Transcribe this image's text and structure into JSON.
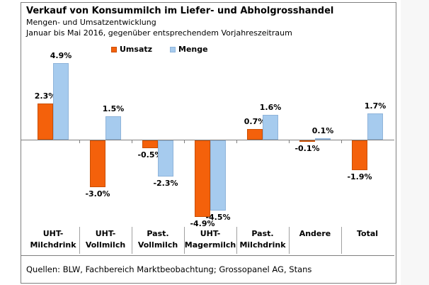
{
  "header": {
    "title": "Verkauf von Konsummilch im Liefer- und Abholgrosshandel",
    "subtitle1": "Mengen- und Umsatzentwicklung",
    "subtitle2": "Januar bis Mai 2016, gegenüber entsprechendem Vorjahreszeitraum"
  },
  "legend": {
    "items": [
      {
        "label": "Umsatz",
        "color": "#F4610B",
        "border": "#C94F04"
      },
      {
        "label": "Menge",
        "color": "#A6CBEE",
        "border": "#8FB4DA"
      }
    ]
  },
  "chart_data": {
    "type": "bar",
    "title": "Verkauf von Konsummilch im Liefer- und Abholgrosshandel",
    "subtitle": "Mengen- und Umsatzentwicklung, Januar bis Mai 2016, gegenüber entsprechendem Vorjahreszeitraum",
    "unit": "%",
    "categories": [
      "UHT-Milchdrink",
      "UHT-Vollmilch",
      "Past. Vollmilch",
      "UHT-Magermilch",
      "Past. Milchdrink",
      "Andere",
      "Total"
    ],
    "category_lines": [
      [
        "UHT-",
        "Milchdrink"
      ],
      [
        "UHT-",
        "Vollmilch"
      ],
      [
        "Past.",
        "Vollmilch"
      ],
      [
        "UHT-",
        "Magermilch"
      ],
      [
        "Past.",
        "Milchdrink"
      ],
      [
        "Andere"
      ],
      [
        "Total"
      ]
    ],
    "series": [
      {
        "name": "Umsatz",
        "color": "#F4610B",
        "border_color": "#C94F04",
        "values": [
          2.3,
          -3.0,
          -0.5,
          -4.9,
          0.7,
          -0.1,
          -1.9
        ],
        "labels": [
          "2.3%",
          "-3.0%",
          "-0.5%",
          "-4.9%",
          "0.7%",
          "-0.1%",
          "-1.9%"
        ]
      },
      {
        "name": "Menge",
        "color": "#A6CBEE",
        "border_color": "#8FB4DA",
        "values": [
          4.9,
          1.5,
          -2.3,
          -4.5,
          1.6,
          0.1,
          1.7
        ],
        "labels": [
          "4.9%",
          "1.5%",
          "-2.3%",
          "-4.5%",
          "1.6%",
          "0.1%",
          "1.7%"
        ]
      }
    ],
    "ylim": [
      -5.5,
      5.5
    ],
    "grid": false,
    "legend_position": "top",
    "axis_color": "#808080",
    "xlabel": "",
    "ylabel": ""
  },
  "footer": {
    "source": "Quellen: BLW, Fachbereich Marktbeobachtung; Grossopanel AG, Stans"
  }
}
